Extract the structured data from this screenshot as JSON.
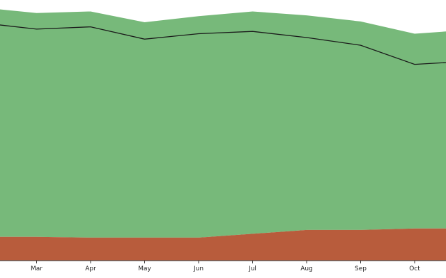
{
  "chart_data": {
    "type": "area",
    "categories": [
      "",
      "Mar",
      "Apr",
      "May",
      "Jun",
      "Jul",
      "Aug",
      "Sep",
      "Oct",
      ""
    ],
    "series": [
      {
        "values": [
          31,
          31,
          30,
          30,
          30,
          35,
          40,
          40,
          42,
          42
        ]
      },
      {
        "values": [
          330,
          323,
          325,
          311,
          319,
          325,
          320,
          312,
          296,
          301
        ]
      }
    ],
    "line_values": [
      310,
      302,
      305,
      289,
      296,
      299,
      291,
      281,
      256,
      260
    ],
    "ylim": [
      0,
      340
    ],
    "grid": false,
    "colors": {
      "lower": "#b85c3c",
      "upper": "#77b97a",
      "line": "#1a1a1a",
      "axis": "#333333"
    }
  }
}
